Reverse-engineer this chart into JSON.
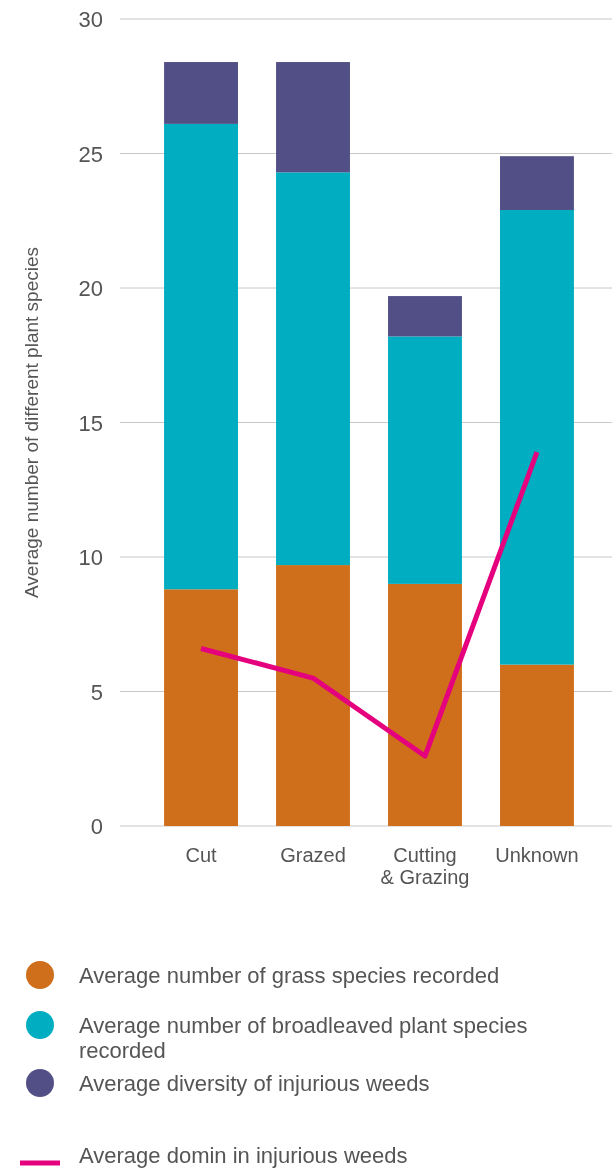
{
  "chart_data": {
    "type": "bar",
    "stacked": true,
    "ylabel": "Average number of different plant species",
    "categories": [
      "Cut",
      "Grazed",
      "Cutting\n& Grazing",
      "Unknown"
    ],
    "series": [
      {
        "name": "Average number of grass species recorded",
        "color": "#cf6f1b",
        "values": [
          8.8,
          9.7,
          9.0,
          6.0
        ]
      },
      {
        "name": "Average number of broadleaved plant species recorded",
        "color": "#00adc1",
        "values": [
          17.3,
          14.6,
          9.2,
          16.9
        ]
      },
      {
        "name": "Average diversity of injurious weeds",
        "color": "#524f87",
        "values": [
          2.3,
          4.1,
          1.5,
          2.0
        ]
      },
      {
        "name": "Average domin in injurious weeds",
        "type": "line",
        "color": "#e5007e",
        "values": [
          6.6,
          5.5,
          2.6,
          13.9
        ]
      }
    ],
    "ylim": [
      0,
      30
    ],
    "yticks": [
      0,
      5,
      10,
      15,
      20,
      25,
      30
    ],
    "grid": "y",
    "legend": "bottom",
    "marker": "none",
    "line_style": "solid"
  }
}
